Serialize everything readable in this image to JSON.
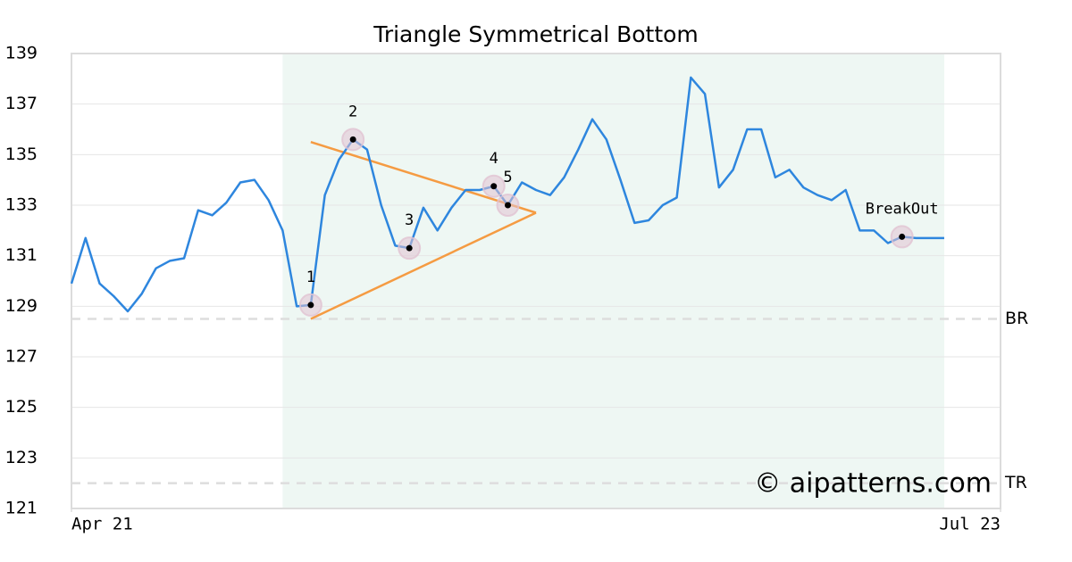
{
  "chart_data": {
    "type": "line",
    "title": "Triangle Symmetrical Bottom",
    "xlim": [
      0,
      66
    ],
    "xticks": [
      {
        "value": 0,
        "label": "Apr 21"
      },
      {
        "value": 66,
        "label": "Jul 23"
      }
    ],
    "ylim": [
      121,
      139
    ],
    "yticks": [
      121,
      123,
      125,
      127,
      129,
      131,
      133,
      135,
      137,
      139
    ],
    "grid": true,
    "series": [
      {
        "name": "Price",
        "color": "#2e86de",
        "values": [
          129.9,
          131.7,
          129.9,
          129.4,
          128.8,
          129.5,
          130.5,
          130.8,
          130.9,
          132.8,
          132.6,
          133.1,
          133.9,
          134.0,
          133.2,
          132.0,
          129.0,
          129.05,
          133.4,
          134.8,
          135.6,
          135.2,
          133.0,
          131.4,
          131.3,
          132.9,
          132.0,
          132.9,
          133.6,
          133.6,
          133.75,
          133.0,
          133.9,
          133.6,
          133.4,
          134.1,
          135.2,
          136.4,
          135.6,
          134.0,
          132.3,
          132.4,
          133.0,
          133.3,
          138.05,
          137.4,
          133.7,
          134.4,
          136.0,
          136.0,
          134.1,
          134.4,
          133.7,
          133.4,
          133.2,
          133.6,
          132.0,
          132.0,
          131.5,
          131.75,
          131.7,
          131.7,
          131.7
        ]
      }
    ],
    "highlight": {
      "start": 15,
      "end": 62,
      "color": "#eef7f3"
    },
    "trend_lines": {
      "color": "#f59b42",
      "lines": [
        {
          "start": [
            17,
            135.5
          ],
          "end": [
            33,
            132.7
          ]
        },
        {
          "start": [
            17,
            128.5
          ],
          "end": [
            33,
            132.7
          ]
        }
      ]
    },
    "points": [
      {
        "label": "1",
        "x": 17,
        "y": 129.05
      },
      {
        "label": "2",
        "x": 20,
        "y": 135.6
      },
      {
        "label": "3",
        "x": 24,
        "y": 131.3
      },
      {
        "label": "4",
        "x": 30,
        "y": 133.75
      },
      {
        "label": "5",
        "x": 31,
        "y": 133.0
      },
      {
        "label": "BreakOut",
        "x": 59,
        "y": 131.75
      }
    ],
    "levels": [
      {
        "label": "BR",
        "value": 128.5
      },
      {
        "label": "TR",
        "value": 122
      }
    ],
    "watermark": "© aipatterns.com"
  }
}
